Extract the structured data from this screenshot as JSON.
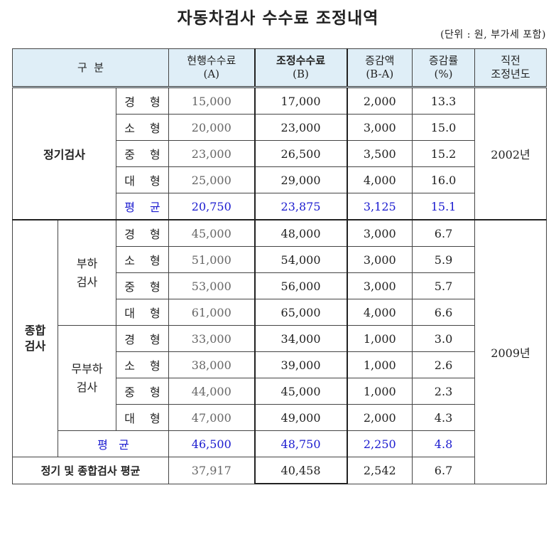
{
  "title": "자동차검사 수수료 조정내역",
  "unit": "(단위 : 원, 부가세 포함)",
  "headers": {
    "category": "구  분",
    "current_l1": "현행수수료",
    "current_l2": "(A)",
    "adjusted_l1": "조정수수료",
    "adjusted_l2": "(B)",
    "diff_l1": "증감액",
    "diff_l2": "(B-A)",
    "rate_l1": "증감률",
    "rate_l2": "(%)",
    "prev_l1": "직전",
    "prev_l2": "조정년도"
  },
  "regular": {
    "label": "정기검사",
    "prev_year": "2002년",
    "rows": [
      {
        "size": "경 형",
        "a": "15,000",
        "b": "17,000",
        "diff": "2,000",
        "rate": "13.3"
      },
      {
        "size": "소 형",
        "a": "20,000",
        "b": "23,000",
        "diff": "3,000",
        "rate": "15.0"
      },
      {
        "size": "중 형",
        "a": "23,000",
        "b": "26,500",
        "diff": "3,500",
        "rate": "15.2"
      },
      {
        "size": "대 형",
        "a": "25,000",
        "b": "29,000",
        "diff": "4,000",
        "rate": "16.0"
      }
    ],
    "avg": {
      "size": "평 균",
      "a": "20,750",
      "b": "23,875",
      "diff": "3,125",
      "rate": "15.1"
    }
  },
  "comprehensive": {
    "label_l1": "종합",
    "label_l2": "검사",
    "prev_year": "2009년",
    "load": {
      "label_l1": "부하",
      "label_l2": "검사",
      "rows": [
        {
          "size": "경 형",
          "a": "45,000",
          "b": "48,000",
          "diff": "3,000",
          "rate": "6.7"
        },
        {
          "size": "소 형",
          "a": "51,000",
          "b": "54,000",
          "diff": "3,000",
          "rate": "5.9"
        },
        {
          "size": "중 형",
          "a": "53,000",
          "b": "56,000",
          "diff": "3,000",
          "rate": "5.7"
        },
        {
          "size": "대 형",
          "a": "61,000",
          "b": "65,000",
          "diff": "4,000",
          "rate": "6.6"
        }
      ]
    },
    "noload": {
      "label_l1": "무부하",
      "label_l2": "검사",
      "rows": [
        {
          "size": "경 형",
          "a": "33,000",
          "b": "34,000",
          "diff": "1,000",
          "rate": "3.0"
        },
        {
          "size": "소 형",
          "a": "38,000",
          "b": "39,000",
          "diff": "1,000",
          "rate": "2.6"
        },
        {
          "size": "중 형",
          "a": "44,000",
          "b": "45,000",
          "diff": "1,000",
          "rate": "2.3"
        },
        {
          "size": "대 형",
          "a": "47,000",
          "b": "49,000",
          "diff": "2,000",
          "rate": "4.3"
        }
      ]
    },
    "avg": {
      "label": "평   균",
      "a": "46,500",
      "b": "48,750",
      "diff": "2,250",
      "rate": "4.8"
    }
  },
  "total": {
    "label": "정기 및 종합검사 평균",
    "a": "37,917",
    "b": "40,458",
    "diff": "2,542",
    "rate": "6.7"
  }
}
